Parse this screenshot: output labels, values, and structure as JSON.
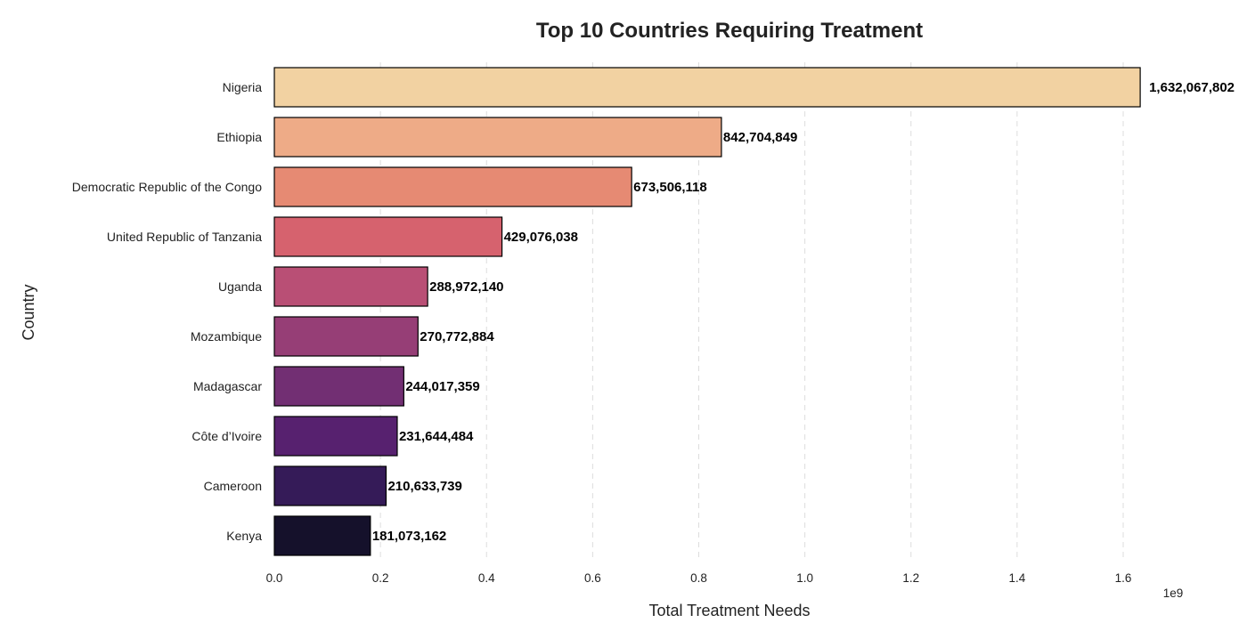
{
  "chart_data": {
    "type": "bar",
    "orientation": "horizontal",
    "title": "Top 10 Countries Requiring Treatment",
    "xlabel": "Total Treatment Needs",
    "ylabel": "Country",
    "x_scale_label": "1e9",
    "xlim": [
      0,
      1.73
    ],
    "x_ticks": [
      0.0,
      0.2,
      0.4,
      0.6,
      0.8,
      1.0,
      1.2,
      1.4,
      1.6
    ],
    "x_tick_labels": [
      "0.0",
      "0.2",
      "0.4",
      "0.6",
      "0.8",
      "1.0",
      "1.2",
      "1.4",
      "1.6"
    ],
    "grid": "x-dashed",
    "categories": [
      "Nigeria",
      "Ethiopia",
      "Democratic Republic of the Congo",
      "United Republic of Tanzania",
      "Uganda",
      "Mozambique",
      "Madagascar",
      "Côte d’Ivoire",
      "Cameroon",
      "Kenya"
    ],
    "values": [
      1632067802,
      842704849,
      673506118,
      429076038,
      288972140,
      270772884,
      244017359,
      231644484,
      210633739,
      181073162
    ],
    "value_labels": [
      "1,632,067,802",
      "842,704,849",
      "673,506,118",
      "429,076,038",
      "288,972,140",
      "270,772,884",
      "244,017,359",
      "231,644,484",
      "210,633,739",
      "181,073,162"
    ],
    "colors": [
      "#f2d2a2",
      "#eeab87",
      "#e68a73",
      "#d6626e",
      "#b94f75",
      "#963e76",
      "#722f73",
      "#57216f",
      "#351b58",
      "#15112b"
    ]
  }
}
